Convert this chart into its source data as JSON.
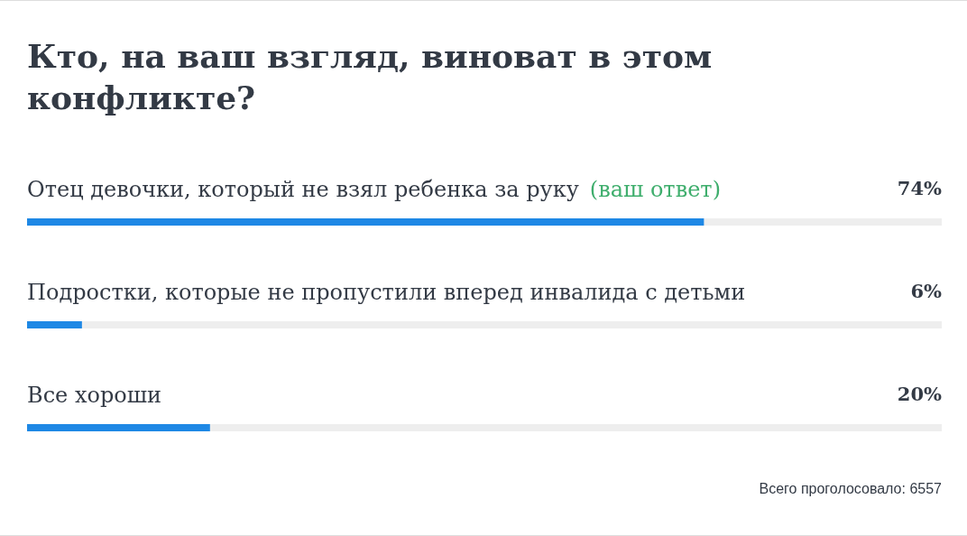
{
  "chart_data": {
    "type": "bar",
    "orientation": "horizontal",
    "title": "Кто, на ваш взгляд, виноват в этом конфликте?",
    "categories": [
      "Отец девочки, который не взял ребенка за руку",
      "Подростки, которые не пропустили вперед инвалида с детьми",
      "Все хороши"
    ],
    "values": [
      74,
      6,
      20
    ],
    "color": "#1e88e5",
    "value_labels": [
      "74%",
      "6%",
      "20%"
    ],
    "xlim": [
      0,
      100
    ],
    "tick_labels": "y",
    "annotations": [
      "(ваш ответ)",
      "Всего проголосовало: 6557"
    ]
  }
}
